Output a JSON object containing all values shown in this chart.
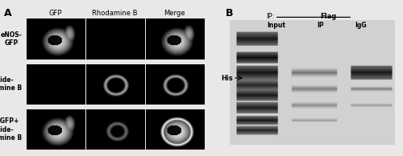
{
  "panel_A_label": "A",
  "panel_B_label": "B",
  "col_headers": [
    "GFP",
    "Rhodamine B",
    "Merge"
  ],
  "row_labels": [
    "eNOS-\nGFP",
    "Peptide-\nRhodamine B",
    "eNOS-GFP+\nPeptide-\nRhodamine B"
  ],
  "ip_label": "IP:",
  "flag_label": "Flag",
  "lane_labels": [
    "Input",
    "IP",
    "IgG"
  ],
  "his_label": "His",
  "figure_bg": "#e8e8e8"
}
